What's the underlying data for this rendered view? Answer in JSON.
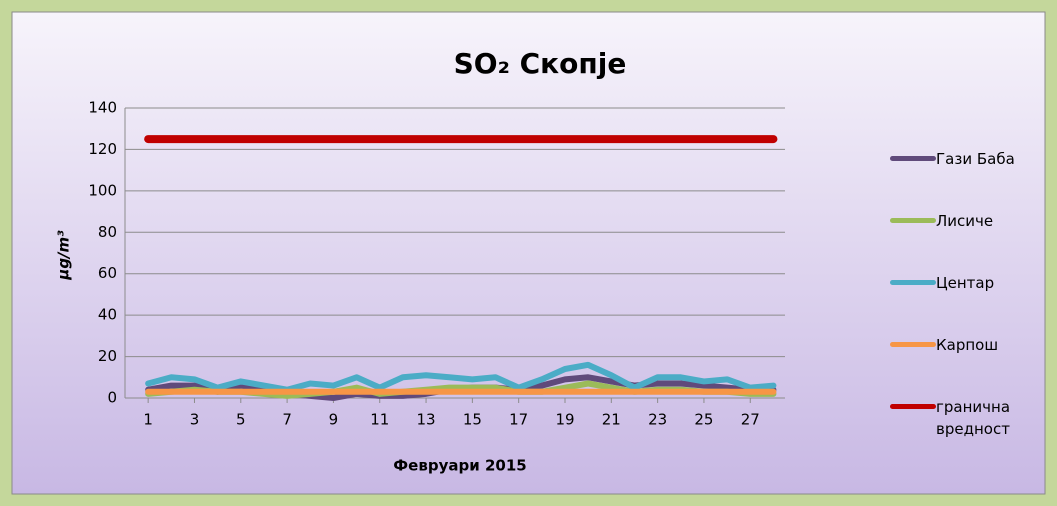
{
  "chart_data": {
    "type": "line",
    "title": "SO₂ Скопје",
    "x_label": "Февруари 2015",
    "y_label": "µg/m³",
    "x": [
      1,
      2,
      3,
      4,
      5,
      6,
      7,
      8,
      9,
      10,
      11,
      12,
      13,
      14,
      15,
      16,
      17,
      18,
      19,
      20,
      21,
      22,
      23,
      24,
      25,
      26,
      27,
      28
    ],
    "xlim": [
      0,
      28.5
    ],
    "xticks": [
      1,
      3,
      5,
      7,
      9,
      11,
      13,
      15,
      17,
      19,
      21,
      23,
      25,
      27
    ],
    "ylim": [
      0,
      140
    ],
    "yticks": [
      0,
      20,
      40,
      60,
      80,
      100,
      120,
      140
    ],
    "grid": true,
    "legend": "right",
    "series": [
      {
        "name": "Гази Баба",
        "color": "#604a7b",
        "values": [
          4,
          6,
          6,
          3,
          6,
          4,
          2,
          1,
          0,
          2,
          1,
          1,
          2,
          4,
          5,
          5,
          4,
          6,
          9,
          10,
          8,
          6,
          7,
          7,
          6,
          5,
          4,
          4
        ]
      },
      {
        "name": "Лисиче",
        "color": "#9bbb59",
        "values": [
          2,
          3,
          4,
          3,
          3,
          2,
          1,
          2,
          3,
          5,
          2,
          3,
          4,
          5,
          5,
          5,
          3,
          3,
          5,
          7,
          5,
          3,
          4,
          4,
          3,
          3,
          2,
          2
        ]
      },
      {
        "name": "Центар",
        "color": "#4bacc6",
        "values": [
          7,
          10,
          9,
          5,
          8,
          6,
          4,
          7,
          6,
          10,
          5,
          10,
          11,
          10,
          9,
          10,
          5,
          9,
          14,
          16,
          11,
          5,
          10,
          10,
          8,
          9,
          5,
          6
        ]
      },
      {
        "name": "Карпош",
        "color": "#f79646",
        "values": [
          3,
          3,
          3,
          3,
          3,
          3,
          3,
          3,
          3,
          3,
          3,
          3,
          3,
          3,
          3,
          3,
          3,
          3,
          3,
          3,
          3,
          3,
          3,
          3,
          3,
          3,
          3,
          3
        ]
      },
      {
        "name": "гранична вредност",
        "color": "#c00000",
        "values": [
          125,
          125,
          125,
          125,
          125,
          125,
          125,
          125,
          125,
          125,
          125,
          125,
          125,
          125,
          125,
          125,
          125,
          125,
          125,
          125,
          125,
          125,
          125,
          125,
          125,
          125,
          125,
          125
        ]
      }
    ]
  }
}
